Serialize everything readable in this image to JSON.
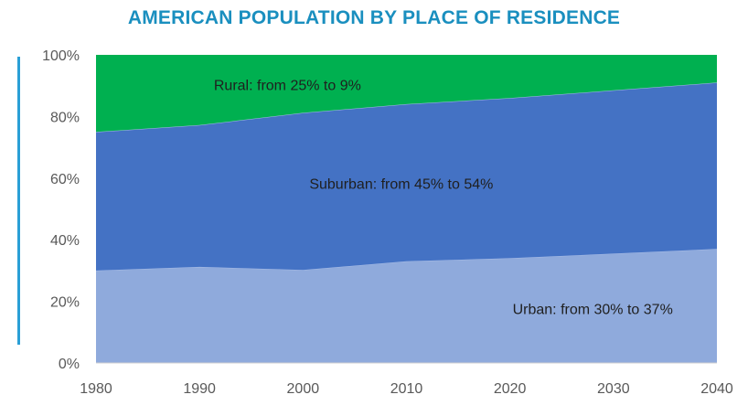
{
  "chart_data": {
    "type": "area",
    "stacked": true,
    "title": "AMERICAN POPULATION BY PLACE OF RESIDENCE",
    "x": [
      1980,
      1990,
      2000,
      2010,
      2020,
      2030,
      2040
    ],
    "xlim": [
      1980,
      2040
    ],
    "ylim": [
      0,
      100
    ],
    "y_tick_labels": [
      "0%",
      "20%",
      "40%",
      "60%",
      "80%",
      "100%"
    ],
    "x_tick_labels": [
      "1980",
      "1990",
      "2000",
      "2010",
      "2020",
      "2030",
      "2040"
    ],
    "grid": false,
    "series": [
      {
        "key": "urban",
        "color": "#8faadc",
        "values": [
          30,
          31.2,
          30.2,
          33,
          34,
          35.5,
          37
        ]
      },
      {
        "key": "suburban",
        "color": "#4472c4",
        "values": [
          45,
          46,
          51,
          51,
          52,
          53,
          54
        ]
      },
      {
        "key": "rural",
        "color": "#00b050",
        "values": [
          25,
          22.8,
          18.8,
          16,
          14,
          11.5,
          9
        ]
      }
    ],
    "annotations": [
      {
        "series": "rural",
        "text": "Rural: from 25% to 9%"
      },
      {
        "series": "suburban",
        "text": "Suburban: from 45% to 54%"
      },
      {
        "series": "urban",
        "text": "Urban: from 30% to 37%"
      }
    ]
  }
}
